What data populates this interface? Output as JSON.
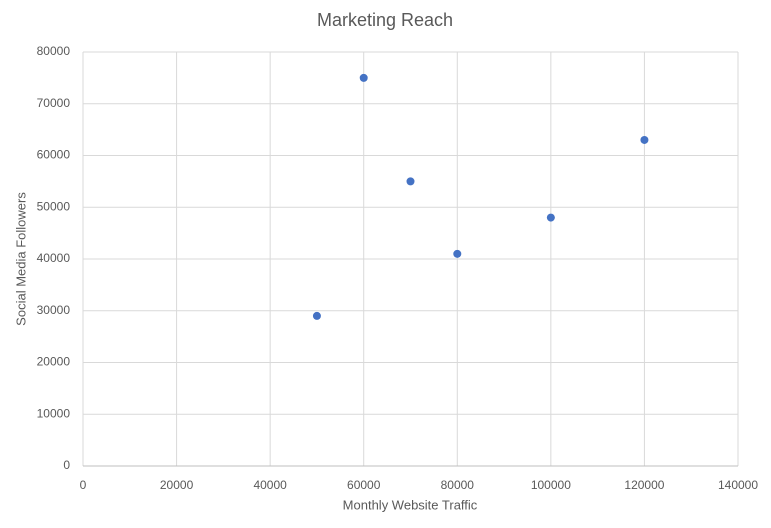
{
  "chart_data": {
    "type": "scatter",
    "title": "Marketing Reach",
    "x_label": "Monthly Website Traffic",
    "y_label": "Social Media Followers",
    "x": [
      50000,
      60000,
      70000,
      80000,
      100000,
      120000
    ],
    "values": [
      29000,
      75000,
      55000,
      41000,
      48000,
      63000
    ],
    "color": "#4472c4",
    "xlim": [
      0,
      140000
    ],
    "xticks": [
      0,
      20000,
      40000,
      60000,
      80000,
      100000,
      120000,
      140000
    ],
    "ylim": [
      0,
      80000
    ],
    "yticks": [
      0,
      10000,
      20000,
      30000,
      40000,
      50000,
      60000,
      70000,
      80000
    ],
    "grid": true
  }
}
